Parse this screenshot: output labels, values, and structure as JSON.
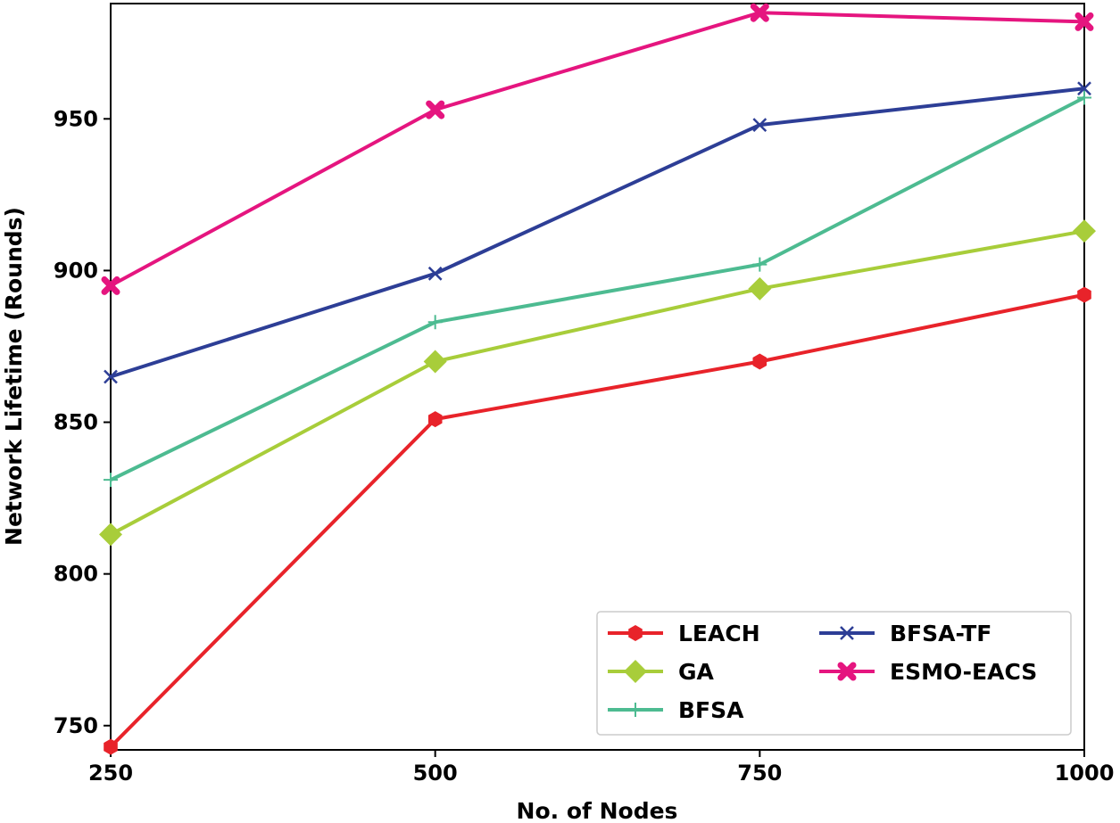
{
  "chart_data": {
    "type": "line",
    "title": "",
    "xlabel": "No. of Nodes",
    "ylabel": "Network Lifetime (Rounds)",
    "x": [
      250,
      500,
      750,
      1000
    ],
    "xticks": [
      "250",
      "500",
      "750",
      "1000"
    ],
    "yticks": [
      "750",
      "800",
      "850",
      "900",
      "950"
    ],
    "xlim": [
      250,
      1000
    ],
    "ylim": [
      742,
      988
    ],
    "grid": false,
    "legend_position": "bottom-right",
    "series": [
      {
        "name": "LEACH",
        "values": [
          743,
          851,
          870,
          892
        ],
        "color": "#e8232a",
        "marker": "hexagon"
      },
      {
        "name": "GA",
        "values": [
          813,
          870,
          894,
          913
        ],
        "color": "#a8cd3a",
        "marker": "diamond"
      },
      {
        "name": "BFSA",
        "values": [
          831,
          883,
          902,
          957
        ],
        "color": "#4dbb91",
        "marker": "plus"
      },
      {
        "name": "BFSA-TF",
        "values": [
          865,
          899,
          948,
          960
        ],
        "color": "#2d3e96",
        "marker": "x"
      },
      {
        "name": "ESMO-EACS",
        "values": [
          895,
          953,
          985,
          982
        ],
        "color": "#e5157f",
        "marker": "x-filled"
      }
    ]
  }
}
